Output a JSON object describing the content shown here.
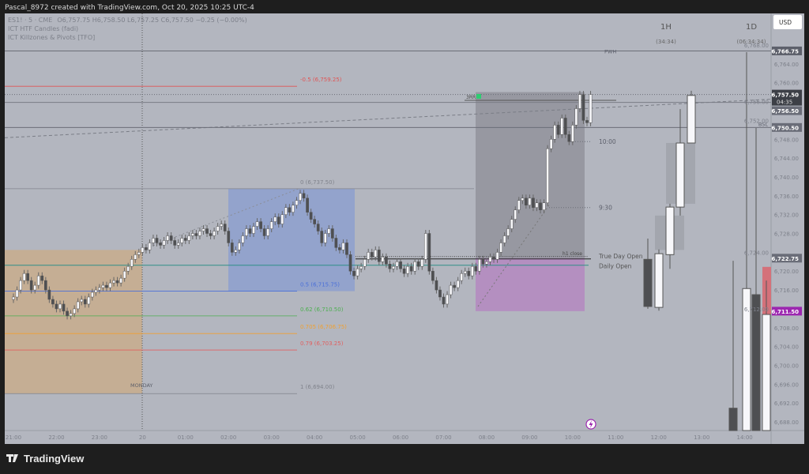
{
  "header": {
    "title": "Pascal_8972 created with TradingView.com, Oct 20, 2025 10:25 UTC-4"
  },
  "legend": {
    "symbol": "ES1! · 5 · CME",
    "ohlc": "O6,757.75  H6,758.50  L6,757.25  C6,757.50  −0.25 (−0.00%)",
    "indicators": [
      "ICT HTF Candles (fadi)",
      "ICT Killzones & Pivots [TFO]"
    ]
  },
  "currency": "USD",
  "footer": {
    "logo": "TradingView"
  },
  "htf_headers": [
    {
      "label": "1H",
      "countdown": "(34:34)"
    },
    {
      "label": "1D",
      "countdown": "(06:34:34)"
    }
  ],
  "chart_data": {
    "type": "candlestick",
    "interval_minutes": 5,
    "x_ticks": [
      "21:00",
      "22:00",
      "23:00",
      "20",
      "01:00",
      "02:00",
      "03:00",
      "04:00",
      "05:00",
      "06:00",
      "07:00",
      "08:00",
      "09:00",
      "10:00",
      "11:00",
      "12:00",
      "13:00",
      "14:00"
    ],
    "y_ticks": [
      6768,
      6764,
      6760,
      6756,
      6752,
      6748,
      6744,
      6740,
      6736,
      6732,
      6728,
      6724,
      6720,
      6716,
      6712,
      6708,
      6704,
      6700,
      6696,
      6692,
      6688
    ],
    "ylim": [
      6686,
      6770
    ],
    "first_open": 6714.0,
    "closes": [
      6714.5,
      6716,
      6718,
      6719.5,
      6718,
      6716,
      6717,
      6719,
      6718,
      6716,
      6714,
      6713,
      6712,
      6713,
      6711.5,
      6710.5,
      6711,
      6712,
      6713.5,
      6714,
      6713,
      6714.5,
      6715.5,
      6716,
      6716.5,
      6717,
      6716.5,
      6717.5,
      6718,
      6717.5,
      6718.5,
      6720,
      6721,
      6722.5,
      6723.5,
      6724,
      6725,
      6724.5,
      6726,
      6727,
      6726,
      6725.5,
      6726.5,
      6727.5,
      6726.5,
      6725.5,
      6726,
      6727,
      6726.5,
      6727.5,
      6728,
      6727.5,
      6728.5,
      6729,
      6728,
      6727.5,
      6728.5,
      6729.5,
      6730,
      6728.5,
      6726,
      6724,
      6724.5,
      6726,
      6727.5,
      6729,
      6728,
      6729.5,
      6730.5,
      6729,
      6727.5,
      6729,
      6730.5,
      6731.5,
      6730,
      6732,
      6733.5,
      6732.5,
      6734,
      6735,
      6736.5,
      6735.5,
      6732.5,
      6731,
      6730,
      6728.5,
      6726,
      6728,
      6729,
      6727,
      6725,
      6724.5,
      6726,
      6723.5,
      6720,
      6719,
      6720.5,
      6721,
      6722.5,
      6724,
      6723,
      6724.5,
      6722,
      6723,
      6721.5,
      6720.5,
      6721,
      6722,
      6720.5,
      6719.5,
      6721,
      6720,
      6722,
      6721,
      6722.5,
      6728,
      6720,
      6718,
      6716,
      6714.5,
      6713,
      6715,
      6717,
      6716.5,
      6718,
      6719.5,
      6720,
      6719,
      6721,
      6720,
      6722.5,
      6721.5,
      6722,
      6723,
      6722.5,
      6724,
      6726,
      6727.5,
      6729,
      6731,
      6733,
      6735,
      6735.5,
      6734,
      6735.5,
      6733.5,
      6734.5,
      6733,
      6734.5,
      6746,
      6748,
      6751,
      6749,
      6752.5,
      6749,
      6747.5,
      6751,
      6754.5,
      6757.5,
      6752,
      6751.5,
      6757.5
    ],
    "htf_1h": [
      {
        "time": "12:00",
        "o": 6722.5,
        "h": 6726.9,
        "l": 6712.0,
        "c": 6712.5
      },
      {
        "time": "12:15",
        "o": 6712.3,
        "h": 6724.6,
        "l": 6711.6,
        "c": 6723.7
      },
      {
        "time": "12:30",
        "o": 6723.5,
        "h": 6734.3,
        "l": 6720.5,
        "c": 6733.6
      },
      {
        "time": "12:45",
        "o": 6733.6,
        "h": 6754.4,
        "l": 6731.8,
        "c": 6747.2
      },
      {
        "time": "13:00",
        "o": 6747.2,
        "h": 6758.3,
        "l": 6747.2,
        "c": 6757.3
      }
    ],
    "htf_1d": [
      {
        "o": 6690.9,
        "h": 6722.2,
        "c": 6680,
        "dir": "down"
      },
      {
        "o": 6680,
        "h": 6766.5,
        "c": 6716.3,
        "dir": "up"
      },
      {
        "o": 6715.0,
        "h": 6750.4,
        "c": 6680,
        "dir": "down"
      },
      {
        "o": 6680,
        "h": 6718,
        "c": 6710.8,
        "dir": "up"
      }
    ],
    "levels": [
      {
        "label": "PWH",
        "price": 6766.75,
        "color": "#6b6e78",
        "style": "solid"
      },
      {
        "label": "BSL",
        "price": 6750.5,
        "color": "#6b6e78",
        "style": "solid"
      },
      {
        "label": "10:00",
        "price": 6747.5,
        "color": "#6b6e78",
        "style": "dotted"
      },
      {
        "label": "9:30",
        "price": 6733.5,
        "color": "#6b6e78",
        "style": "dotted"
      },
      {
        "label": "True Day Open",
        "price": 6722.75,
        "color": "#222",
        "style": "solid"
      },
      {
        "label": "h1 close",
        "price": 6722.75,
        "color": "#444",
        "style": "dotted"
      },
      {
        "label": "Daily Open",
        "price": 6721.25,
        "color": "#2f8f88",
        "style": "solid"
      },
      {
        "label": "MONDAY",
        "price": 6694,
        "color": "#6b6e78",
        "style": "none"
      }
    ],
    "fib": [
      {
        "label": "-0.5 (6,759.25)",
        "price": 6759.25,
        "color": "#e05454"
      },
      {
        "label": "0 (6,737.50)",
        "price": 6737.5,
        "color": "#80838c"
      },
      {
        "label": "0.5 (6,715.75)",
        "price": 6715.75,
        "color": "#4a6fd8"
      },
      {
        "label": "0.62 (6,710.50)",
        "price": 6710.5,
        "color": "#4caf50"
      },
      {
        "label": "0.705 (6,706.75)",
        "price": 6706.75,
        "color": "#f0a030"
      },
      {
        "label": "0.79 (6,703.25)",
        "price": 6703.25,
        "color": "#e06060"
      },
      {
        "label": "1 (6,694.00)",
        "price": 6694,
        "color": "#80838c"
      }
    ],
    "trade_label": "3RR",
    "price_badges": [
      {
        "price": 6766.75,
        "text": "6,766.75",
        "color": "#5d606b"
      },
      {
        "price": 6757.5,
        "text": "6,757.50",
        "sub": "04:35",
        "color": "#3c3f46"
      },
      {
        "price": 6756.5,
        "text": "6,756.50",
        "color": "#6a6d78"
      },
      {
        "price": 6750.5,
        "text": "6,750.50",
        "color": "#6a6d78"
      },
      {
        "price": 6722.75,
        "text": "6,722.75",
        "color": "#6a6d78"
      },
      {
        "price": 6711.5,
        "text": "6,711.50",
        "color": "#9c27b0"
      }
    ]
  },
  "colors": {
    "background": "#b3b6bf",
    "up": "#f7f7fa",
    "down": "#4e4f52",
    "accent": "#9c27b0"
  }
}
